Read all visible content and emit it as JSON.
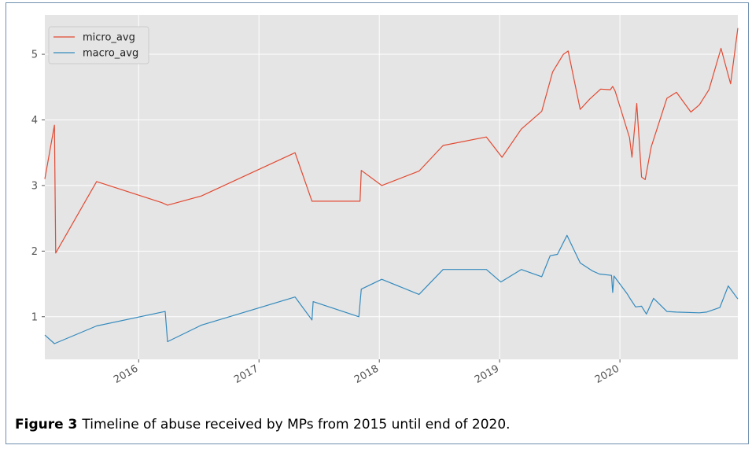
{
  "caption": {
    "label": "Figure 3",
    "text": "Timeline of abuse received by MPs from 2015 until end of 2020."
  },
  "chart_data": {
    "type": "line",
    "title": "",
    "xlabel": "",
    "ylabel": "",
    "xlim": [
      2015.22,
      2020.98
    ],
    "ylim": [
      0.35,
      5.6
    ],
    "x_ticks": [
      2016,
      2017,
      2018,
      2019,
      2020
    ],
    "x_tick_labels": [
      "2016",
      "2017",
      "2018",
      "2019",
      "2020"
    ],
    "y_ticks": [
      1,
      2,
      3,
      4,
      5
    ],
    "y_tick_labels": [
      "1",
      "2",
      "3",
      "4",
      "5"
    ],
    "grid": true,
    "legend_position": "top-left",
    "series": [
      {
        "name": "micro_avg",
        "color": "#e24a33",
        "x": [
          2015.22,
          2015.3,
          2015.31,
          2015.65,
          2016.19,
          2016.24,
          2016.52,
          2017.3,
          2017.44,
          2017.84,
          2017.85,
          2018.02,
          2018.33,
          2018.53,
          2018.89,
          2019.02,
          2019.18,
          2019.35,
          2019.44,
          2019.53,
          2019.57,
          2019.67,
          2019.75,
          2019.84,
          2019.92,
          2019.94,
          2019.96,
          2020.08,
          2020.1,
          2020.14,
          2020.18,
          2020.21,
          2020.26,
          2020.39,
          2020.47,
          2020.59,
          2020.66,
          2020.74,
          2020.84,
          2020.92,
          2020.98
        ],
        "values": [
          3.1,
          3.92,
          1.97,
          3.06,
          2.74,
          2.7,
          2.84,
          3.5,
          2.76,
          2.76,
          3.23,
          3.0,
          3.22,
          3.61,
          3.74,
          3.43,
          3.86,
          4.13,
          4.73,
          5.0,
          5.05,
          4.16,
          4.32,
          4.47,
          4.46,
          4.51,
          4.44,
          3.73,
          3.43,
          4.25,
          3.13,
          3.09,
          3.59,
          4.33,
          4.42,
          4.12,
          4.23,
          4.46,
          5.09,
          4.55,
          5.4
        ]
      },
      {
        "name": "macro_avg",
        "color": "#348abd",
        "x": [
          2015.22,
          2015.3,
          2015.65,
          2016.22,
          2016.24,
          2016.52,
          2017.3,
          2017.44,
          2017.45,
          2017.83,
          2017.85,
          2018.02,
          2018.33,
          2018.53,
          2018.89,
          2019.01,
          2019.18,
          2019.35,
          2019.42,
          2019.48,
          2019.56,
          2019.67,
          2019.77,
          2019.83,
          2019.93,
          2019.94,
          2019.95,
          2020.06,
          2020.08,
          2020.13,
          2020.18,
          2020.22,
          2020.28,
          2020.39,
          2020.47,
          2020.66,
          2020.72,
          2020.83,
          2020.9,
          2020.98
        ],
        "values": [
          0.72,
          0.59,
          0.86,
          1.08,
          0.62,
          0.87,
          1.3,
          0.95,
          1.23,
          1.0,
          1.42,
          1.57,
          1.34,
          1.72,
          1.72,
          1.53,
          1.72,
          1.61,
          1.93,
          1.95,
          2.24,
          1.82,
          1.7,
          1.65,
          1.63,
          1.37,
          1.62,
          1.35,
          1.29,
          1.15,
          1.16,
          1.04,
          1.28,
          1.08,
          1.07,
          1.06,
          1.07,
          1.14,
          1.47,
          1.27
        ]
      }
    ]
  }
}
